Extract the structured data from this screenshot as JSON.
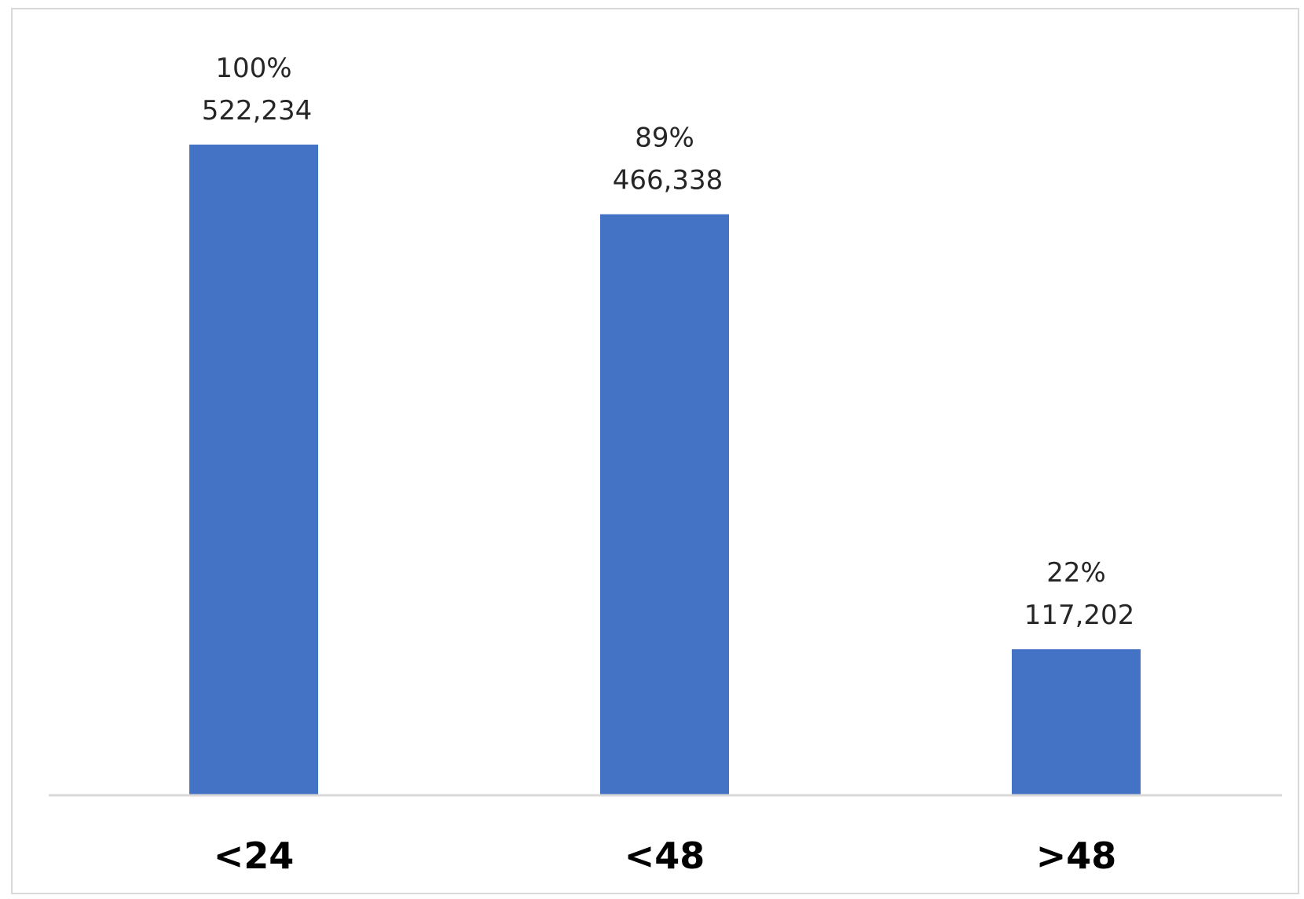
{
  "chart_data": {
    "type": "bar",
    "categories": [
      "<24",
      "<48",
      ">48"
    ],
    "values": [
      522234,
      466338,
      117202
    ],
    "percent_labels": [
      "100%",
      "89%",
      "22%"
    ],
    "value_labels": [
      "522,234",
      "466,338",
      "117,202"
    ],
    "title": "",
    "xlabel": "",
    "ylabel": "",
    "ylim": [
      0,
      600000
    ],
    "grid": false,
    "legend": "none",
    "colors": {
      "bar": "#4472C4",
      "axis": "#d9d9d9",
      "label_text": "#262626",
      "category_text": "#000000"
    }
  }
}
